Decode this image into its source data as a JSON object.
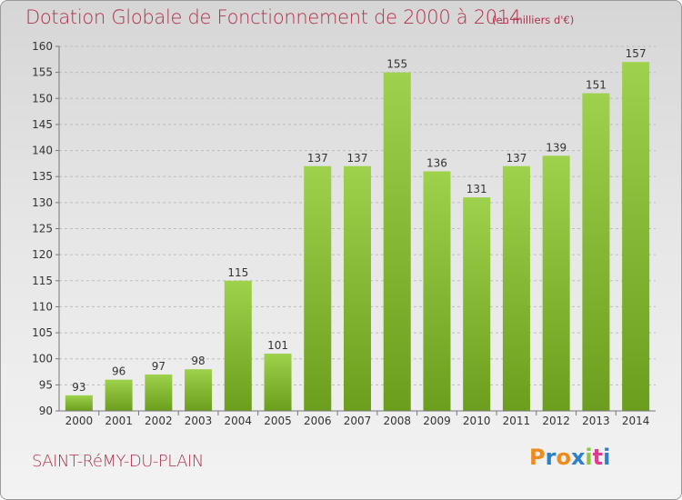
{
  "header": {
    "title": "Dotation Globale de Fonctionnement de 2000 à 2014",
    "unit_note": "(en milliers d'€)"
  },
  "footer": {
    "commune": "SAINT-RéMY-DU-PLAIN",
    "brand": "Proxiti",
    "brand_colors": [
      "#f08a1c",
      "#2f7fc9",
      "#f08a1c",
      "#2f7fc9",
      "#8dc63f",
      "#e23a8e",
      "#2f7fc9"
    ]
  },
  "colors": {
    "bar_light": "#9ed24c",
    "bar_dark": "#6a9e1c",
    "grid": "#bdbdbd",
    "axis_text": "#333333",
    "title": "#b0304a"
  },
  "chart_data": {
    "type": "bar",
    "categories": [
      "2000",
      "2001",
      "2002",
      "2003",
      "2004",
      "2005",
      "2006",
      "2007",
      "2008",
      "2009",
      "2010",
      "2011",
      "2012",
      "2013",
      "2014"
    ],
    "values": [
      93,
      96,
      97,
      98,
      115,
      101,
      137,
      137,
      155,
      136,
      131,
      137,
      139,
      151,
      157
    ],
    "title": "Dotation Globale de Fonctionnement de 2000 à 2014",
    "subtitle": "(en milliers d'€)",
    "xlabel": "",
    "ylabel": "",
    "ylim": [
      90,
      160
    ],
    "yticks": [
      90,
      95,
      100,
      105,
      110,
      115,
      120,
      125,
      130,
      135,
      140,
      145,
      150,
      155,
      160
    ],
    "grid": true,
    "data_labels": true
  }
}
